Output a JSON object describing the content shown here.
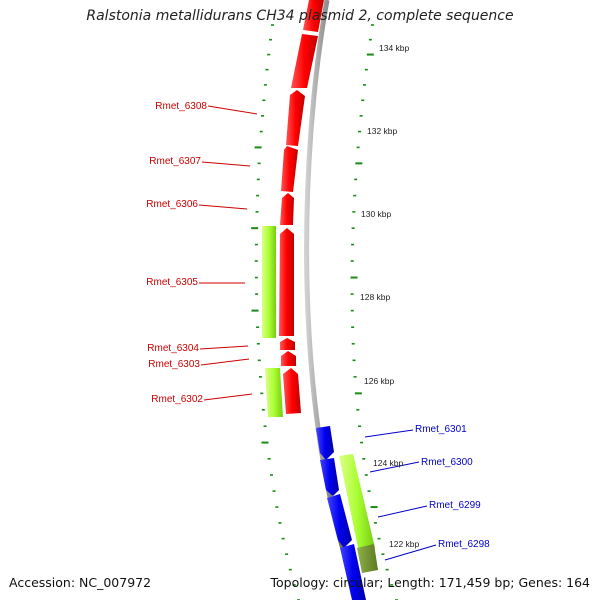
{
  "title": "Ralstonia metallidurans CH34 plasmid 2, complete sequence",
  "accession": "Accession: NC_007972",
  "summary": "Topology: circular; Length: 171,459 bp; Genes: 164",
  "colors": {
    "forward_gene": "#ff0000",
    "reverse_gene": "#0000ee",
    "feature": "#aaff33",
    "feature_overlap": "#6f8f2a",
    "backbone": "#8a8a8a",
    "ticks": "#1a8a1a",
    "forward_label": "#cc0000",
    "reverse_label": "#0000cc"
  },
  "scale_labels": [
    "134 kbp",
    "132 kbp",
    "130 kbp",
    "128 kbp",
    "126 kbp",
    "124 kbp",
    "122 kbp"
  ],
  "genes_forward": [
    {
      "name": "Rmet_6308"
    },
    {
      "name": "Rmet_6307"
    },
    {
      "name": "Rmet_6306"
    },
    {
      "name": "Rmet_6305"
    },
    {
      "name": "Rmet_6304"
    },
    {
      "name": "Rmet_6303"
    },
    {
      "name": "Rmet_6302"
    }
  ],
  "genes_reverse": [
    {
      "name": "Rmet_6301"
    },
    {
      "name": "Rmet_6300"
    },
    {
      "name": "Rmet_6299"
    },
    {
      "name": "Rmet_6298"
    }
  ]
}
